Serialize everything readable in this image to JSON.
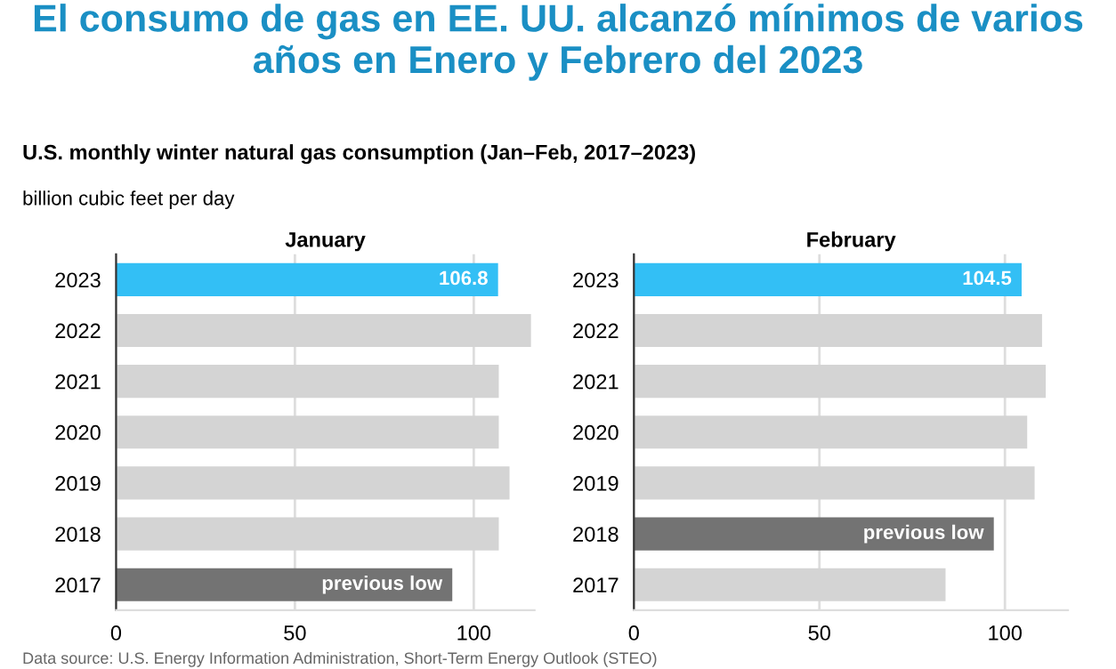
{
  "chart_data": [
    {
      "type": "other",
      "title": "El consumo de gas en EE. UU. alcanzó mínimos de varios años en Enero y Febrero del 2023",
      "subtitle": "U.S. monthly winter natural gas consumption (Jan–Feb, 2017–2023)",
      "annotations": [
        "billion cubic feet per day",
        "Data source: U.S. Energy Information Administration, Short-Term Energy Outlook (STEO)"
      ]
    },
    {
      "type": "bar",
      "orientation": "horizontal",
      "title": "January",
      "categories": [
        "2023",
        "2022",
        "2021",
        "2020",
        "2019",
        "2018",
        "2017"
      ],
      "values": [
        106.8,
        116,
        107,
        107,
        110,
        107,
        94
      ],
      "colors": [
        "#33bff5",
        "#d4d4d4",
        "#d4d4d4",
        "#d4d4d4",
        "#d4d4d4",
        "#d4d4d4",
        "#737373"
      ],
      "value_labels": [
        "106.8",
        null,
        null,
        null,
        null,
        null,
        "previous low"
      ],
      "xlim": [
        0,
        117
      ],
      "xticks": [
        0,
        50,
        100
      ],
      "grid": "x"
    },
    {
      "type": "bar",
      "orientation": "horizontal",
      "title": "February",
      "categories": [
        "2023",
        "2022",
        "2021",
        "2020",
        "2019",
        "2018",
        "2017"
      ],
      "values": [
        104.5,
        110,
        111,
        106,
        108,
        97,
        84
      ],
      "colors": [
        "#33bff5",
        "#d4d4d4",
        "#d4d4d4",
        "#d4d4d4",
        "#d4d4d4",
        "#737373",
        "#d4d4d4"
      ],
      "value_labels": [
        "104.5",
        null,
        null,
        null,
        null,
        "previous low",
        null
      ],
      "xlim": [
        0,
        117
      ],
      "xticks": [
        0,
        50,
        100
      ],
      "grid": "x"
    }
  ]
}
